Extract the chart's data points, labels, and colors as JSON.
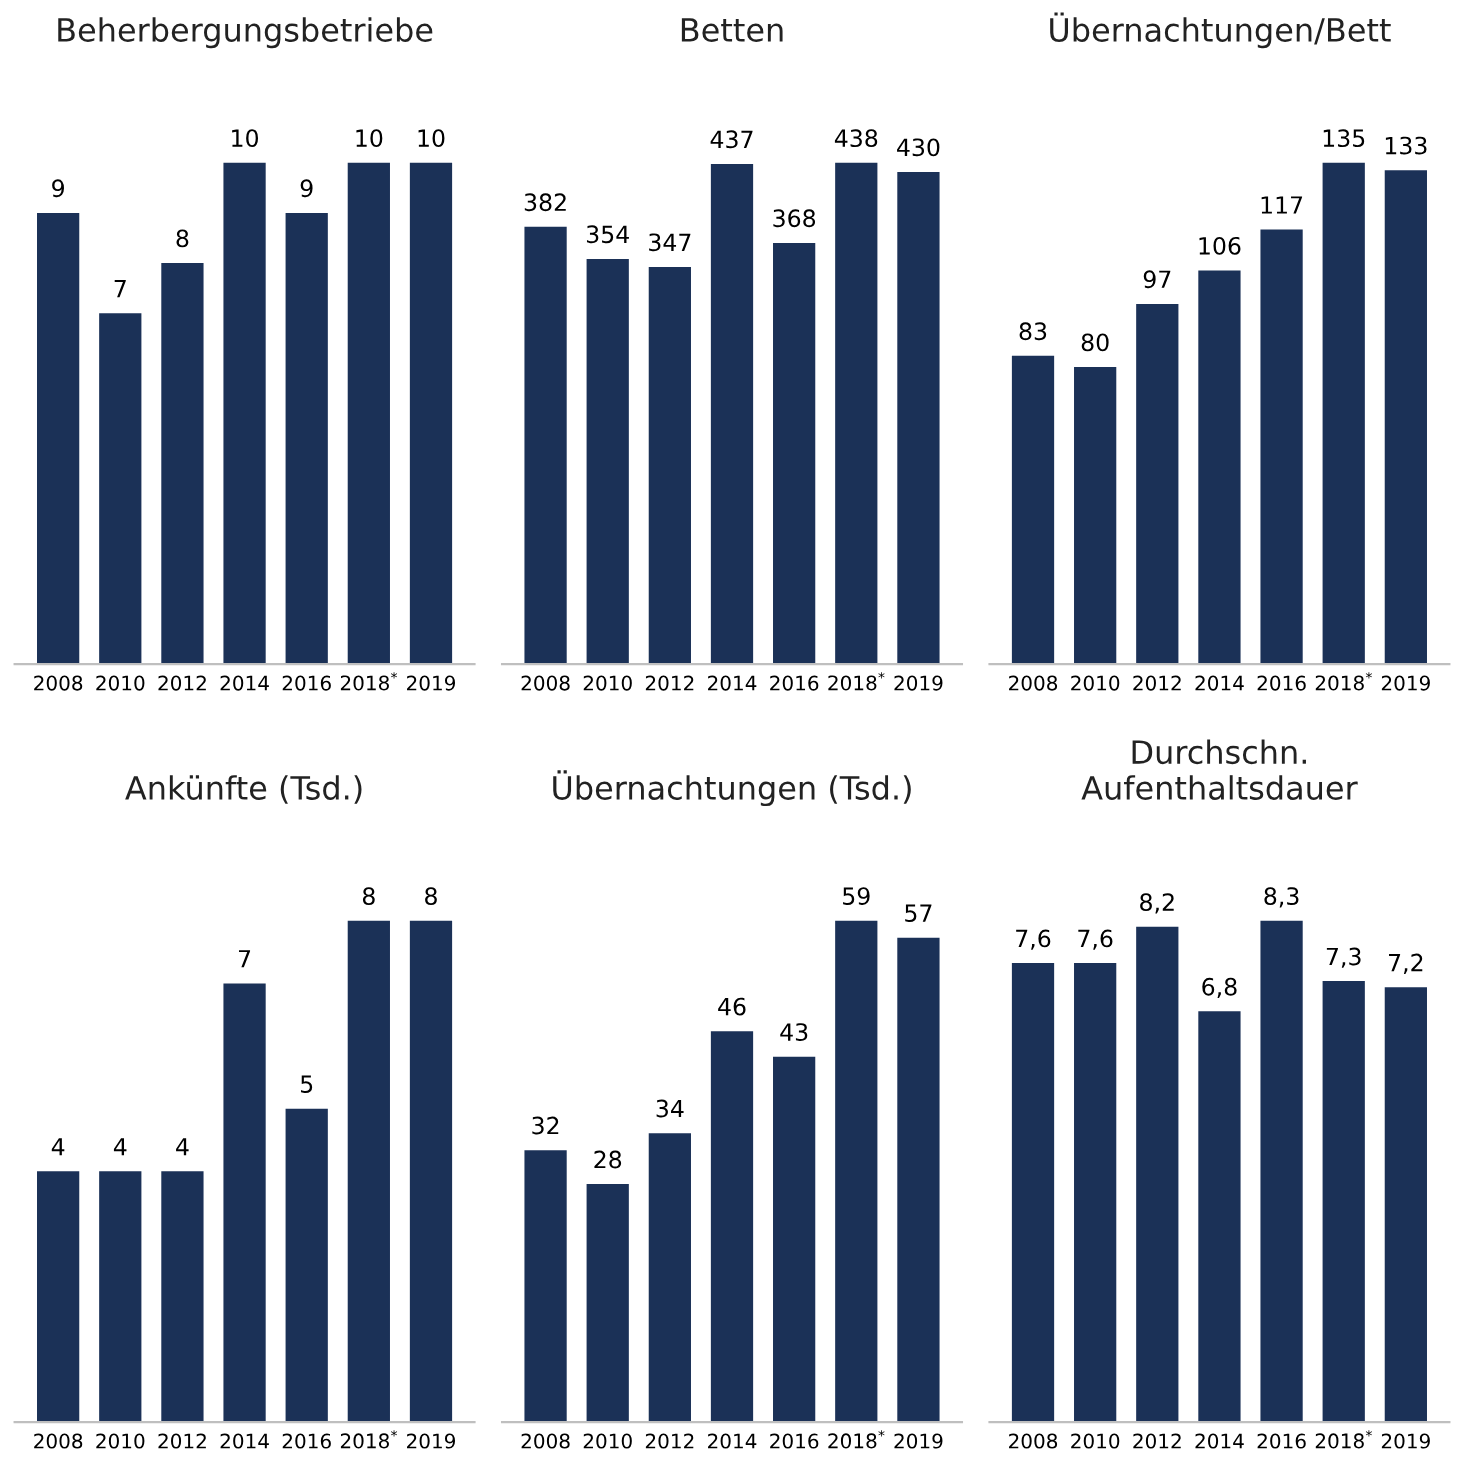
{
  "chart_data": [
    {
      "type": "bar",
      "title": "Beherbergungsbetriebe",
      "categories": [
        "2008",
        "2010",
        "2012",
        "2014",
        "2016",
        "2018$^{*}$",
        "2019"
      ],
      "values": [
        9,
        7,
        8,
        10,
        9,
        10,
        10
      ],
      "color": "#1b3157",
      "data_labels": true
    },
    {
      "type": "bar",
      "title": "Betten",
      "categories": [
        "2008",
        "2010",
        "2012",
        "2014",
        "2016",
        "2018$^{*}$",
        "2019"
      ],
      "values": [
        382,
        354,
        347,
        437,
        368,
        438,
        430
      ],
      "color": "#1b3157",
      "data_labels": true
    },
    {
      "type": "bar",
      "title": "Übernachtungen/Bett",
      "categories": [
        "2008",
        "2010",
        "2012",
        "2014",
        "2016",
        "2018$^{*}$",
        "2019"
      ],
      "values": [
        83,
        80,
        97,
        106,
        117,
        135,
        133
      ],
      "color": "#1b3157",
      "data_labels": true
    },
    {
      "type": "bar",
      "title": "Ankünfte (Tsd.)",
      "categories": [
        "2008",
        "2010",
        "2012",
        "2014",
        "2016",
        "2018$^{*}$",
        "2019"
      ],
      "values": [
        4,
        4,
        4,
        7,
        5,
        8,
        8
      ],
      "color": "#1b3157",
      "data_labels": true
    },
    {
      "type": "bar",
      "title": "Übernachtungen (Tsd.)",
      "categories": [
        "2008",
        "2010",
        "2012",
        "2014",
        "2016",
        "2018$^{*}$",
        "2019"
      ],
      "values": [
        32,
        28,
        34,
        46,
        43,
        59,
        57
      ],
      "color": "#1b3157",
      "data_labels": true
    },
    {
      "type": "bar",
      "title": "Durchschn.\nAufenthaltsdauer",
      "categories": [
        "2008",
        "2010",
        "2012",
        "2014",
        "2016",
        "2018$^{*}$",
        "2019"
      ],
      "values": [
        7.6,
        7.6,
        8.2,
        6.8,
        8.3,
        7.3,
        7.2
      ],
      "value_labels": [
        "7,6",
        "7,6",
        "8,2",
        "6,8",
        "8,3",
        "7,3",
        "7,2"
      ],
      "color": "#1b3157"
    }
  ]
}
